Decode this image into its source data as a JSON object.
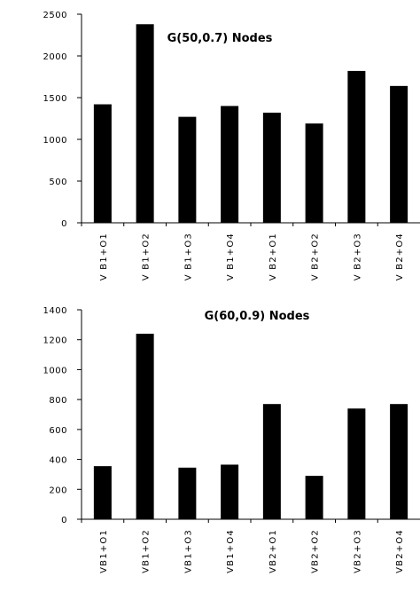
{
  "chart_data": [
    {
      "type": "bar",
      "title": "G(50,0.7) Nodes",
      "xlabel": "",
      "ylabel": "",
      "ylim": [
        0,
        2500
      ],
      "yticks": [
        0,
        500,
        1000,
        1500,
        2000,
        2500
      ],
      "ytick_labels": [
        "0",
        "500",
        "1000",
        "1500",
        "2000",
        "2500"
      ],
      "grid": false,
      "categories": [
        "VB1+O1",
        "VB1+O2",
        "VB1+O3",
        "VB1+O4",
        "VB2+O1",
        "VB2+O2",
        "VB2+O3",
        "VB2+O4"
      ],
      "category_labels": [
        "V B1+O1",
        "V B1+O2",
        "V B1+O3",
        "V B1+O4",
        "V B2+O1",
        "V B2+O2",
        "V B2+O3",
        "V B2+O4"
      ],
      "values": [
        1420,
        2380,
        1270,
        1400,
        1320,
        1190,
        1820,
        1640
      ],
      "bar_color": "#000000"
    },
    {
      "type": "bar",
      "title": "G(60,0.9) Nodes",
      "xlabel": "",
      "ylabel": "",
      "ylim": [
        0,
        1400
      ],
      "yticks": [
        0,
        200,
        400,
        600,
        800,
        1000,
        1200,
        1400
      ],
      "ytick_labels": [
        "0",
        "200",
        "400",
        "600",
        "800",
        "1000",
        "1200",
        "1400"
      ],
      "grid": false,
      "categories": [
        "VB1+O1",
        "VB1+O2",
        "VB1+O3",
        "VB1+O4",
        "VB2+O1",
        "VB2+O2",
        "VB2+O3",
        "VB2+O4"
      ],
      "category_labels": [
        "VB1+O1",
        "VB1+O2",
        "VB1+O3",
        "VB1+O4",
        "VB2+O1",
        "VB2+O2",
        "VB2+O3",
        "VB2+O4"
      ],
      "values": [
        355,
        1240,
        345,
        365,
        770,
        290,
        740,
        770
      ],
      "bar_color": "#000000"
    }
  ]
}
